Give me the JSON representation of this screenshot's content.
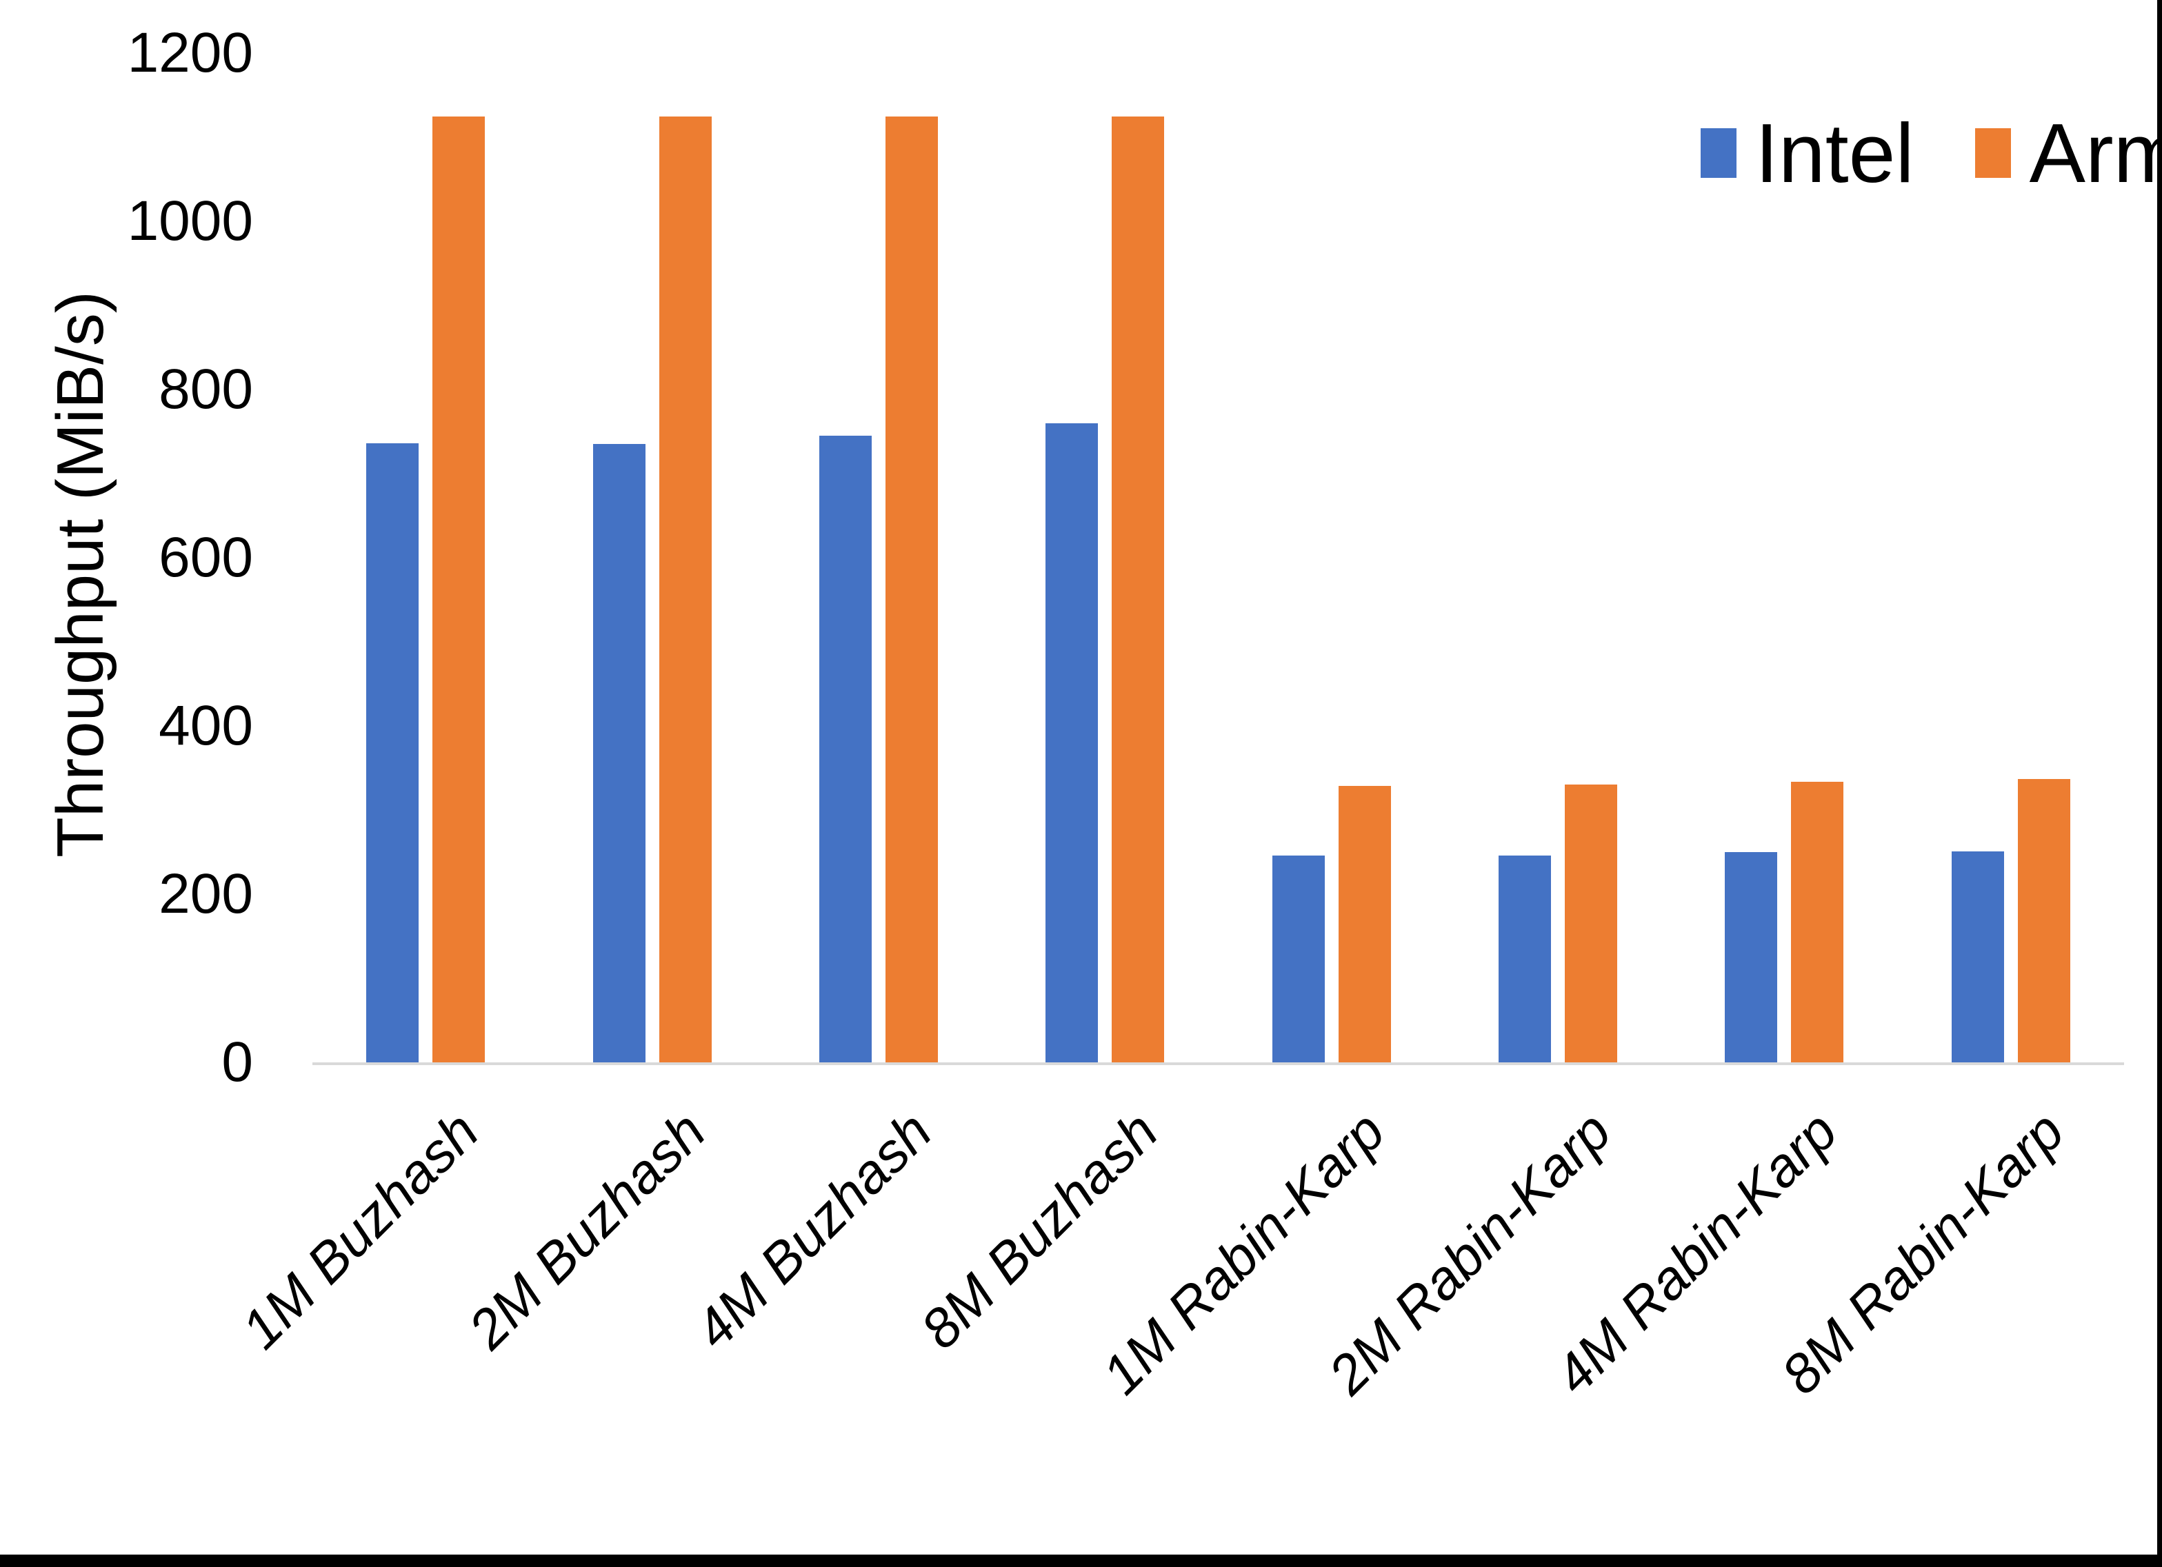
{
  "chart_data": {
    "type": "bar",
    "title": "",
    "xlabel": "",
    "ylabel": "Throughput (MiB/s)",
    "categories": [
      "1M Buzhash",
      "2M Buzhash",
      "4M Buzhash",
      "8M Buzhash",
      "1M Rabin-Karp",
      "2M Rabin-Karp",
      "4M Rabin-Karp",
      "8M Rabin-Karp"
    ],
    "series": [
      {
        "name": "Intel",
        "color": "#4472C4",
        "values": [
          736,
          735,
          745,
          760,
          246,
          246,
          250,
          251
        ]
      },
      {
        "name": "Arm",
        "color": "#ED7D31",
        "values": [
          1125,
          1125,
          1125,
          1125,
          329,
          330,
          334,
          337
        ]
      }
    ],
    "ylim": [
      0,
      1200
    ],
    "yticks": [
      0,
      200,
      400,
      600,
      800,
      1000,
      1200
    ],
    "grid": false,
    "legend_position": "top-right",
    "category_label_rotation_deg": -45,
    "category_label_style": "italic",
    "colors": {
      "axis_line": "#D9D9D9",
      "text": "#000000",
      "background": "#FFFFFF",
      "frame_border": "#000000"
    }
  }
}
